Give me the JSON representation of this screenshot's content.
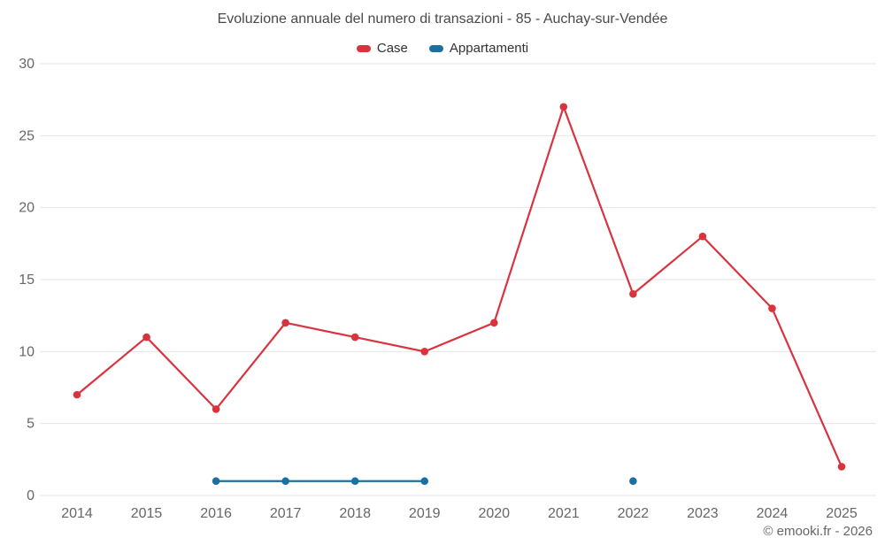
{
  "chart_data": {
    "type": "line",
    "title": "Evoluzione annuale del numero di transazioni - 85 - Auchay-sur-Vendée",
    "categories": [
      "2014",
      "2015",
      "2016",
      "2017",
      "2018",
      "2019",
      "2020",
      "2021",
      "2022",
      "2023",
      "2024",
      "2025"
    ],
    "series": [
      {
        "name": "Case",
        "color": "#d9343e",
        "values": [
          7,
          11,
          6,
          12,
          11,
          10,
          12,
          27,
          14,
          18,
          13,
          2
        ]
      },
      {
        "name": "Appartamenti",
        "color": "#1c6fa0",
        "values": [
          null,
          null,
          1,
          1,
          1,
          1,
          null,
          null,
          1,
          null,
          null,
          null
        ]
      }
    ],
    "xlabel": "",
    "ylabel": "",
    "ylim": [
      0,
      30
    ],
    "yticks": [
      0,
      5,
      10,
      15,
      20,
      25,
      30
    ],
    "grid": "horizontal",
    "legend_position": "top"
  },
  "footer": {
    "copyright": "© emooki.fr - 2026"
  }
}
